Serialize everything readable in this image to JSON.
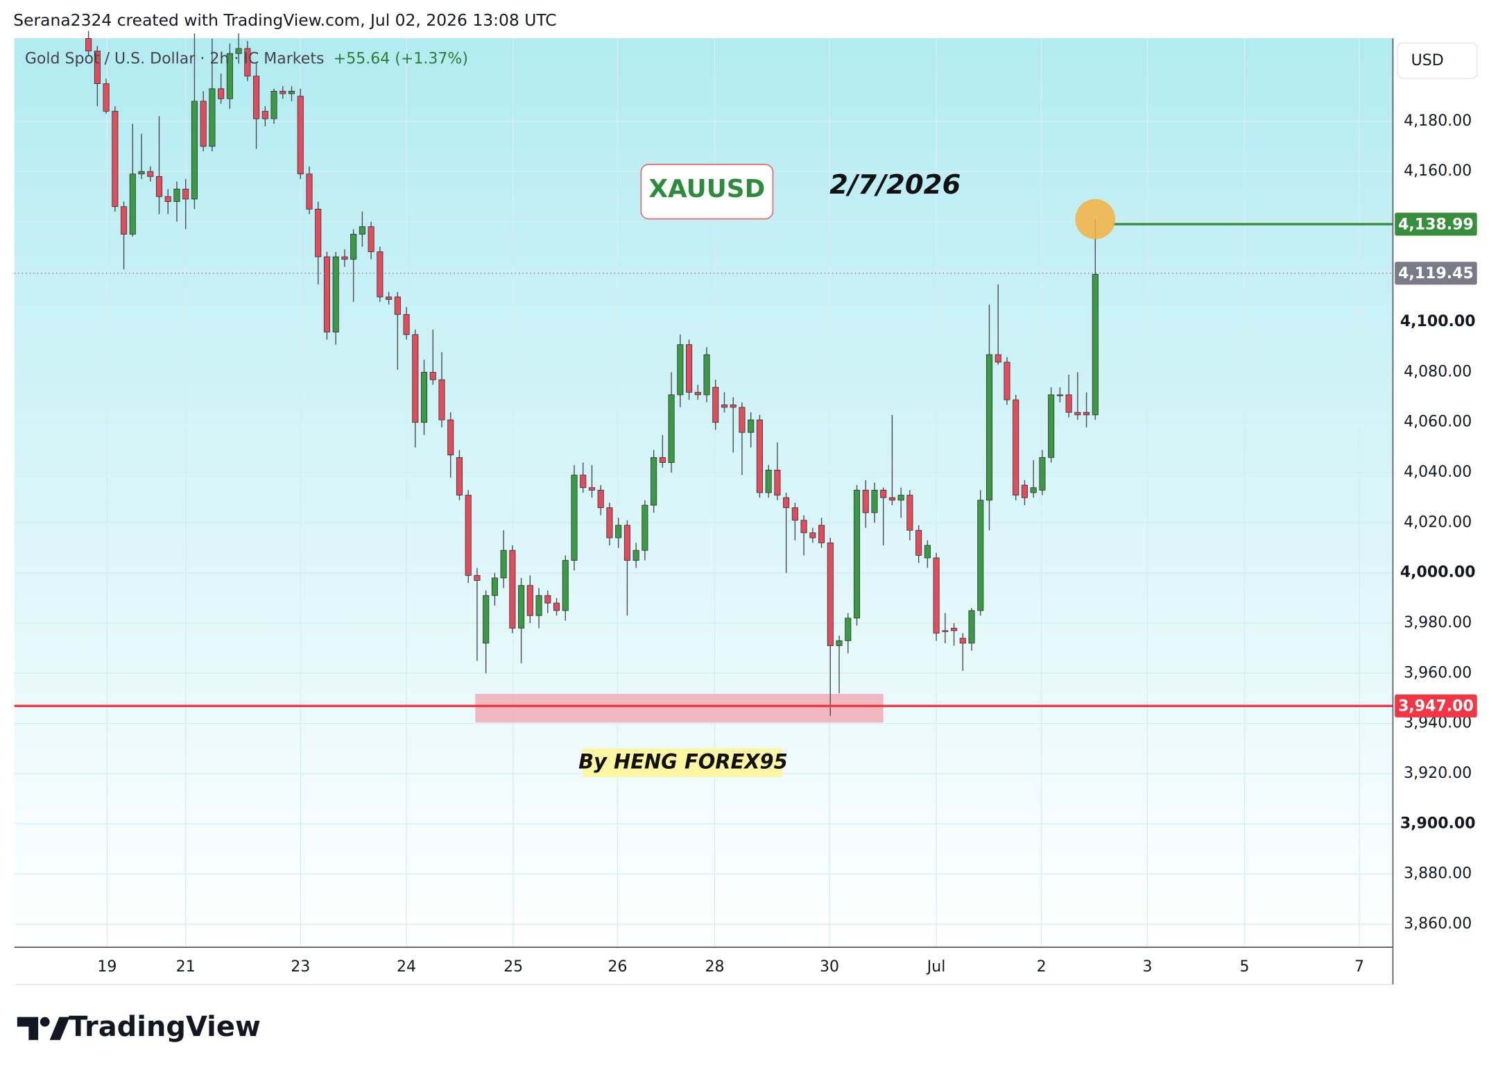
{
  "header": {
    "credit": "Serana2324 created with TradingView.com, Jul 02, 2026 13:08 UTC",
    "symbol": "Gold Spot / U.S. Dollar · 2h · IC Markets",
    "change": "+55.64 (+1.37%)",
    "currency": "USD"
  },
  "chart_data": {
    "type": "candlestick",
    "up_color": "#3a9a46",
    "down_color": "#e24d5d",
    "ylim": [
      3851.2,
      4213.1
    ],
    "yticks": [
      {
        "value": 3860,
        "label": "3,860.00"
      },
      {
        "value": 3880,
        "label": "3,880.00"
      },
      {
        "value": 3900,
        "label": "3,900.00"
      },
      {
        "value": 3920,
        "label": "3,920.00"
      },
      {
        "value": 3940,
        "label": "3,940.00"
      },
      {
        "value": 3960,
        "label": "3,960.00"
      },
      {
        "value": 3980,
        "label": "3,980.00"
      },
      {
        "value": 4000,
        "label": "4,000.00"
      },
      {
        "value": 4020,
        "label": "4,020.00"
      },
      {
        "value": 4040,
        "label": "4,040.00"
      },
      {
        "value": 4060,
        "label": "4,060.00"
      },
      {
        "value": 4080,
        "label": "4,080.00"
      },
      {
        "value": 4100,
        "label": "4,100.00"
      },
      {
        "value": 4120,
        "label": "4,120.00"
      },
      {
        "value": 4140,
        "label": "4,140.00"
      },
      {
        "value": 4160,
        "label": "4,160.00"
      },
      {
        "value": 4180,
        "label": "4,180.00"
      }
    ],
    "xlim": [
      -8.4,
      147.7
    ],
    "xticks": [
      {
        "value": 2.1,
        "label": "19"
      },
      {
        "value": 11.0,
        "label": "21"
      },
      {
        "value": 24.0,
        "label": "23"
      },
      {
        "value": 36.0,
        "label": "24"
      },
      {
        "value": 48.1,
        "label": "25"
      },
      {
        "value": 59.9,
        "label": "26"
      },
      {
        "value": 70.9,
        "label": "28"
      },
      {
        "value": 83.9,
        "label": "30"
      },
      {
        "value": 96.0,
        "label": "Jul"
      },
      {
        "value": 107.9,
        "label": "2"
      },
      {
        "value": 119.9,
        "label": "3"
      },
      {
        "value": 130.9,
        "label": "5"
      },
      {
        "value": 143.9,
        "label": "7"
      }
    ],
    "grid": true,
    "ohlc": [
      [
        4213,
        4216,
        4206,
        4208
      ],
      [
        4208,
        4210,
        4186,
        4195
      ],
      [
        4195,
        4197,
        4183,
        4184
      ],
      [
        4184,
        4186,
        4144,
        4146
      ],
      [
        4146,
        4148,
        4121,
        4135
      ],
      [
        4135,
        4179,
        4134,
        4159
      ],
      [
        4159,
        4175,
        4157,
        4160
      ],
      [
        4160,
        4162,
        4156,
        4158
      ],
      [
        4158,
        4182,
        4143,
        4150
      ],
      [
        4150,
        4153,
        4143,
        4148
      ],
      [
        4148,
        4156,
        4140,
        4153
      ],
      [
        4153,
        4157,
        4137,
        4149
      ],
      [
        4149,
        4215,
        4145,
        4188
      ],
      [
        4188,
        4192,
        4168,
        4170
      ],
      [
        4170,
        4213,
        4168,
        4193
      ],
      [
        4193,
        4199,
        4187,
        4189
      ],
      [
        4189,
        4211,
        4185,
        4207
      ],
      [
        4207,
        4215,
        4203,
        4209
      ],
      [
        4209,
        4212,
        4196,
        4198
      ],
      [
        4198,
        4203,
        4169,
        4181
      ],
      [
        4184,
        4186,
        4178,
        4181
      ],
      [
        4181,
        4193,
        4179,
        4192
      ],
      [
        4192,
        4194,
        4189,
        4191
      ],
      [
        4191,
        4194,
        4188,
        4192
      ],
      [
        4190,
        4193,
        4157,
        4159
      ],
      [
        4159,
        4162,
        4143,
        4145
      ],
      [
        4145,
        4148,
        4115,
        4126
      ],
      [
        4126,
        4128,
        4093,
        4096
      ],
      [
        4096,
        4128,
        4091,
        4126
      ],
      [
        4126,
        4129,
        4122,
        4125
      ],
      [
        4125,
        4137,
        4108,
        4135
      ],
      [
        4135,
        4144,
        4130,
        4138
      ],
      [
        4138,
        4140,
        4125,
        4128
      ],
      [
        4128,
        4130,
        4108,
        4110
      ],
      [
        4110,
        4112,
        4107,
        4109
      ],
      [
        4110,
        4112,
        4081,
        4103
      ],
      [
        4103,
        4106,
        4093,
        4095
      ],
      [
        4095,
        4097,
        4050,
        4060
      ],
      [
        4060,
        4085,
        4055,
        4080
      ],
      [
        4080,
        4097,
        4075,
        4077
      ],
      [
        4077,
        4088,
        4058,
        4061
      ],
      [
        4061,
        4064,
        4038,
        4047
      ],
      [
        4046,
        4049,
        4029,
        4031
      ],
      [
        4031,
        4033,
        3996,
        3999
      ],
      [
        3999,
        4002,
        3965,
        3997
      ],
      [
        3972,
        3993,
        3960,
        3991
      ],
      [
        3991,
        4000,
        3987,
        3998
      ],
      [
        3998,
        4017,
        3994,
        4009
      ],
      [
        4009,
        4011,
        3976,
        3978
      ],
      [
        3978,
        3998,
        3964,
        3995
      ],
      [
        3995,
        3999,
        3980,
        3983
      ],
      [
        3983,
        3994,
        3978,
        3991
      ],
      [
        3991,
        3993,
        3984,
        3988
      ],
      [
        3988,
        3990,
        3983,
        3985
      ],
      [
        3985,
        4007,
        3981,
        4005
      ],
      [
        4005,
        4043,
        4001,
        4039
      ],
      [
        4039,
        4044,
        4032,
        4034
      ],
      [
        4034,
        4043,
        4030,
        4033
      ],
      [
        4033,
        4035,
        4023,
        4026
      ],
      [
        4026,
        4028,
        4011,
        4014
      ],
      [
        4014,
        4022,
        4010,
        4019
      ],
      [
        4019,
        4021,
        3983,
        4005
      ],
      [
        4005,
        4012,
        4002,
        4009
      ],
      [
        4009,
        4029,
        4005,
        4027
      ],
      [
        4027,
        4049,
        4024,
        4046
      ],
      [
        4046,
        4055,
        4042,
        4044
      ],
      [
        4044,
        4080,
        4040,
        4071
      ],
      [
        4071,
        4095,
        4066,
        4091
      ],
      [
        4091,
        4093,
        4069,
        4072
      ],
      [
        4072,
        4075,
        4069,
        4071
      ],
      [
        4071,
        4090,
        4068,
        4087
      ],
      [
        4074,
        4077,
        4057,
        4060
      ],
      [
        4067,
        4072,
        4064,
        4066
      ],
      [
        4067,
        4070,
        4048,
        4066
      ],
      [
        4066,
        4068,
        4039,
        4056
      ],
      [
        4056,
        4064,
        4050,
        4061
      ],
      [
        4061,
        4063,
        4030,
        4032
      ],
      [
        4032,
        4043,
        4030,
        4041
      ],
      [
        4041,
        4052,
        4029,
        4031
      ],
      [
        4030,
        4032,
        4000,
        4026
      ],
      [
        4026,
        4028,
        4013,
        4021
      ],
      [
        4021,
        4023,
        4007,
        4016
      ],
      [
        4016,
        4018,
        4012,
        4014
      ],
      [
        4019,
        4022,
        4010,
        4012
      ],
      [
        4012,
        4014,
        3943,
        3971
      ],
      [
        3971,
        3975,
        3952,
        3973
      ],
      [
        3973,
        3984,
        3968,
        3982
      ],
      [
        3982,
        4035,
        3979,
        4033
      ],
      [
        4033,
        4037,
        4018,
        4024
      ],
      [
        4024,
        4036,
        4020,
        4033
      ],
      [
        4033,
        4034,
        4011,
        4030
      ],
      [
        4030,
        4063,
        4027,
        4029
      ],
      [
        4029,
        4034,
        4022,
        4031
      ],
      [
        4031,
        4033,
        4013,
        4017
      ],
      [
        4017,
        4019,
        4004,
        4007
      ],
      [
        4006,
        4013,
        4002,
        4011
      ],
      [
        4006,
        4008,
        3973,
        3976
      ],
      [
        3977,
        3984,
        3972,
        3977
      ],
      [
        3978,
        3980,
        3971,
        3977
      ],
      [
        3974,
        3976,
        3961,
        3972
      ],
      [
        3972,
        3986,
        3969,
        3985
      ],
      [
        3985,
        4033,
        3983,
        4029
      ],
      [
        4029,
        4107,
        4017,
        4087
      ],
      [
        4087,
        4115,
        4083,
        4084
      ],
      [
        4084,
        4086,
        4067,
        4069
      ],
      [
        4069,
        4071,
        4029,
        4031
      ],
      [
        4035,
        4037,
        4027,
        4030
      ],
      [
        4032,
        4045,
        4030,
        4034
      ],
      [
        4033,
        4049,
        4031,
        4046
      ],
      [
        4046,
        4074,
        4044,
        4071
      ],
      [
        4071,
        4074,
        4068,
        4071
      ],
      [
        4071,
        4079,
        4062,
        4064
      ],
      [
        4064,
        4080,
        4061,
        4063
      ],
      [
        4064,
        4072,
        4058,
        4063
      ],
      [
        4063,
        4141,
        4061,
        4119
      ]
    ],
    "levels": [
      {
        "value": 4138.99,
        "label": "4,138.99",
        "color": "#388e3c",
        "start": 116,
        "style": "solid"
      },
      {
        "value": 4119.45,
        "label": "4,119.45",
        "color": "#787b86",
        "start": -8.4,
        "style": "dotted"
      },
      {
        "value": 3947.0,
        "label": "3,947.00",
        "color": "#f23645",
        "start": -8.4,
        "style": "solid"
      }
    ],
    "zone": {
      "low": 3940.4,
      "high": 3951.8,
      "start": 43.8,
      "end": 90.0,
      "color": "#f4a7b0"
    },
    "marker": {
      "index": 114,
      "value": 4141,
      "color": "#f5b041"
    },
    "annotations": {
      "symbol_box": "XAUUSD",
      "date": "2/7/2026",
      "author": "By HENG FOREX95"
    }
  },
  "footer": {
    "logo": "TradingView"
  }
}
